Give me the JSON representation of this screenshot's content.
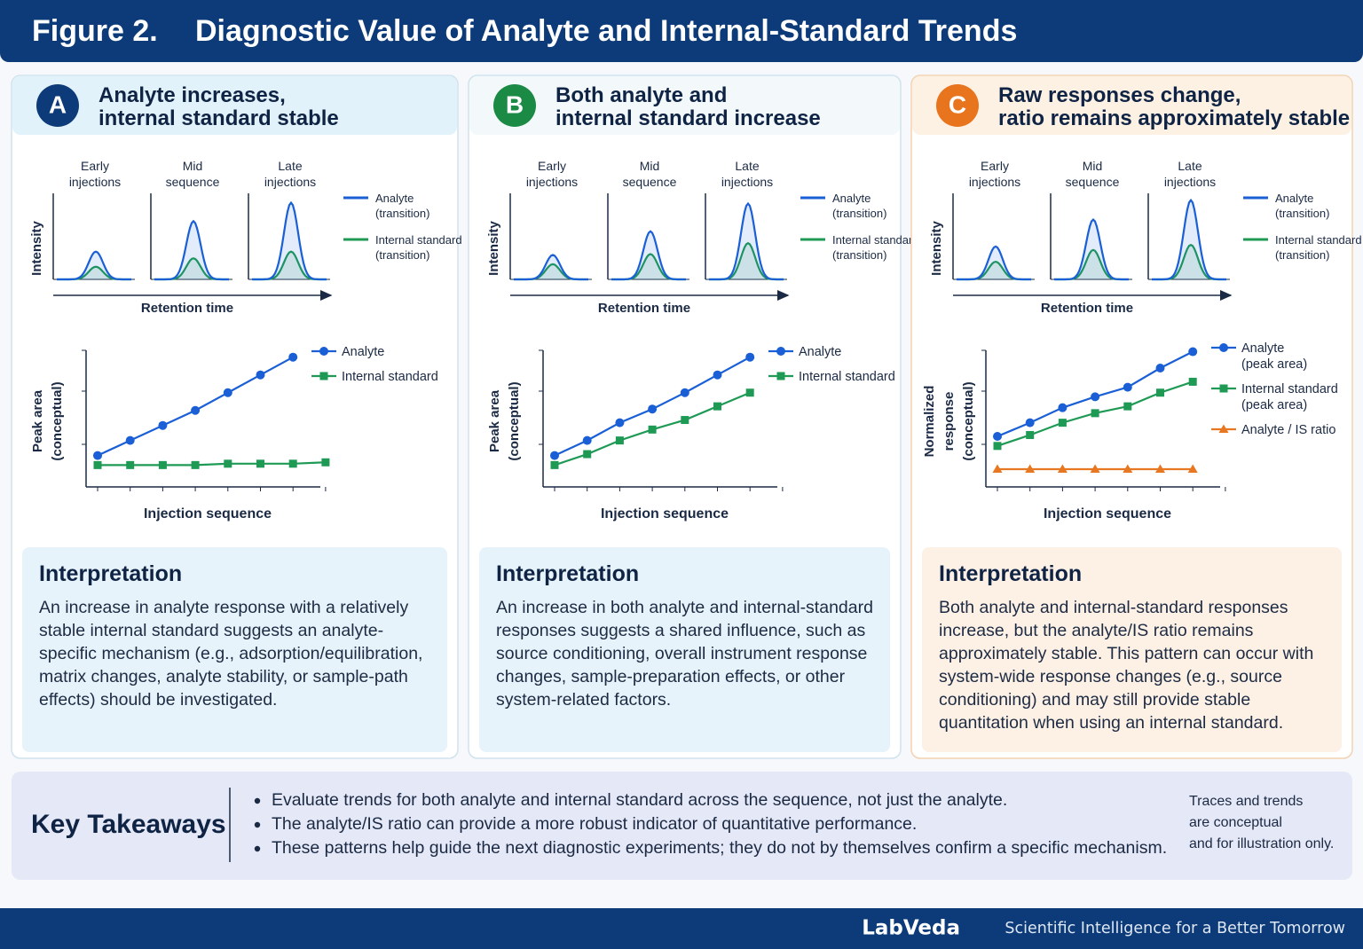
{
  "header": {
    "figure": "Figure 2.",
    "title": "Diagnostic Value of Analyte and Internal-Standard Trends"
  },
  "panels": [
    {
      "letter": "A",
      "color": "#0d3b7a",
      "tint": "#e2f2fa",
      "box": "#e6f3fa",
      "title_lines": [
        "Analyte increases,",
        "internal standard stable"
      ],
      "chromatogram": {
        "stages": [
          [
            "Early",
            "injections"
          ],
          [
            "Mid",
            "sequence"
          ],
          [
            "Late",
            "injections"
          ]
        ],
        "y_label": "Intensity",
        "x_label": "Retention time",
        "peaks": {
          "analyte": [
            33,
            69,
            91
          ],
          "internal_standard": [
            15,
            25,
            33
          ]
        },
        "legend": [
          {
            "name": [
              "Analyte",
              "(transition)"
            ],
            "color": "#1a5fd6"
          },
          {
            "name": [
              "Internal standard",
              "(transition)"
            ],
            "color": "#1e9a55"
          }
        ]
      },
      "trend": {
        "y_label": [
          "Peak area",
          "(conceptual)"
        ],
        "x_label": "Injection sequence",
        "series": [
          {
            "name": [
              "Analyte"
            ],
            "color": "#1a5fd6",
            "marker": "circle",
            "values": [
              23,
              34,
              45,
              56,
              69,
              82,
              95,
              null
            ]
          },
          {
            "name": [
              "Internal standard"
            ],
            "color": "#1e9a55",
            "marker": "square",
            "values": [
              16,
              16,
              16,
              16,
              17,
              17,
              17,
              18
            ]
          }
        ]
      },
      "interpretation": {
        "heading": "Interpretation",
        "text": "An increase in analyte response with a relatively stable internal standard suggests an analyte-specific mechanism (e.g., adsorption/equilibration, matrix changes, analyte stability, or sample-path effects) should be investigated."
      }
    },
    {
      "letter": "B",
      "color": "#1a8a45",
      "tint": "#f3f9fb",
      "box": "#e6f3fa",
      "title_lines": [
        "Both analyte and",
        "internal standard increase"
      ],
      "chromatogram": {
        "stages": [
          [
            "Early",
            "injections"
          ],
          [
            "Mid",
            "sequence"
          ],
          [
            "Late",
            "injections"
          ]
        ],
        "y_label": "Intensity",
        "x_label": "Retention time",
        "peaks": {
          "analyte": [
            29,
            57,
            90
          ],
          "internal_standard": [
            18,
            30,
            43
          ]
        },
        "legend": [
          {
            "name": [
              "Analyte",
              "(transition)"
            ],
            "color": "#1a5fd6"
          },
          {
            "name": [
              "Internal standard",
              "(transition)"
            ],
            "color": "#1e9a55"
          }
        ]
      },
      "trend": {
        "y_label": [
          "Peak area",
          "(conceptual)"
        ],
        "x_label": "Injection sequence",
        "series": [
          {
            "name": [
              "Analyte"
            ],
            "color": "#1a5fd6",
            "marker": "circle",
            "values": [
              23,
              34,
              47,
              57,
              69,
              82,
              95
            ]
          },
          {
            "name": [
              "Internal standard"
            ],
            "color": "#1e9a55",
            "marker": "square",
            "values": [
              16,
              24,
              34,
              42,
              49,
              59,
              69
            ]
          }
        ]
      },
      "interpretation": {
        "heading": "Interpretation",
        "text": "An increase in both analyte and internal-standard responses suggests a shared influence, such as source conditioning, overall instrument response changes, sample-preparation effects, or other system-related factors."
      }
    },
    {
      "letter": "C",
      "color": "#e8741e",
      "tint": "#fdf1e4",
      "box": "#fdf0e4",
      "title_lines": [
        "Raw responses change,",
        "ratio remains approximately stable"
      ],
      "chromatogram": {
        "stages": [
          [
            "Early",
            "injections"
          ],
          [
            "Mid",
            "sequence"
          ],
          [
            "Late",
            "injections"
          ]
        ],
        "y_label": "Intensity",
        "x_label": "Retention time",
        "peaks": {
          "analyte": [
            39,
            71,
            94
          ],
          "internal_standard": [
            21,
            35,
            41
          ]
        },
        "legend": [
          {
            "name": [
              "Analyte",
              "(transition)"
            ],
            "color": "#1a5fd6"
          },
          {
            "name": [
              "Internal standard",
              "(transition)"
            ],
            "color": "#1e9a55"
          }
        ]
      },
      "trend": {
        "y_label": [
          "Normalized",
          "response",
          "(conceptual)"
        ],
        "x_label": "Injection sequence",
        "series": [
          {
            "name": [
              "Analyte",
              "(peak area)"
            ],
            "color": "#1a5fd6",
            "marker": "circle",
            "values": [
              37,
              47,
              58,
              66,
              73,
              87,
              99
            ]
          },
          {
            "name": [
              "Internal standard",
              "(peak area)"
            ],
            "color": "#1e9a55",
            "marker": "square",
            "values": [
              30,
              38,
              47,
              54,
              59,
              69,
              77
            ]
          },
          {
            "name": [
              "Analyte / IS ratio"
            ],
            "color": "#e87722",
            "marker": "triangle",
            "values": [
              13,
              13,
              13,
              13,
              13,
              13,
              13
            ]
          }
        ]
      },
      "interpretation": {
        "heading": "Interpretation",
        "text": "Both analyte and internal-standard responses increase, but the analyte/IS ratio remains approximately stable. This pattern can occur with system-wide response changes (e.g., source conditioning) and may still provide stable quantitation when using an internal standard."
      }
    }
  ],
  "takeaways": {
    "heading": "Key Takeaways",
    "bullets": [
      "Evaluate trends for both analyte and internal standard across the sequence, not just the analyte.",
      "The analyte/IS ratio can provide a more robust indicator of quantitative performance.",
      "These patterns help guide the next diagnostic experiments; they do not by themselves confirm a specific mechanism."
    ],
    "note": [
      "Traces and trends",
      "are conceptual",
      "and for illustration only."
    ]
  },
  "footer": {
    "brand": "LabVeda",
    "tagline": "Scientific Intelligence for a Better Tomorrow"
  }
}
